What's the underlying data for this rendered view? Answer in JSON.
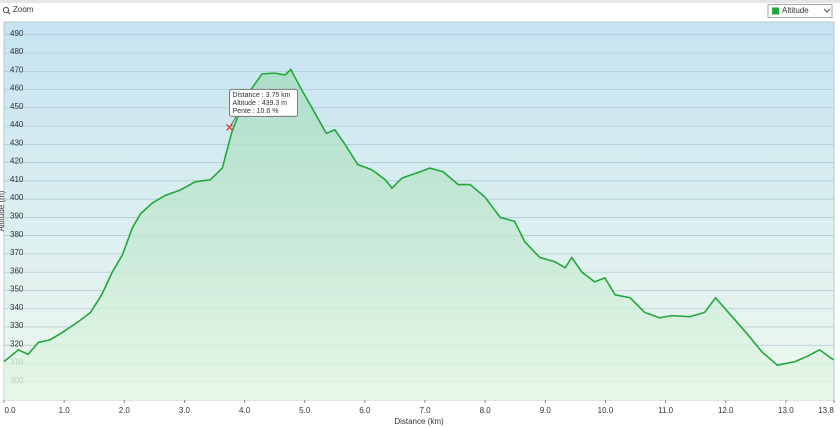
{
  "toolbar": {
    "zoom": "Zoom"
  },
  "chart_data": {
    "type": "line",
    "area": true,
    "grid": true,
    "x_label": "Distance (km)",
    "y_label": "Altitude (m)",
    "x": [
      0.0,
      0.24,
      0.4,
      0.57,
      0.77,
      0.97,
      1.24,
      1.44,
      1.63,
      1.8,
      1.97,
      2.13,
      2.27,
      2.47,
      2.68,
      2.93,
      3.18,
      3.43,
      3.63,
      3.79,
      4.01,
      4.29,
      4.5,
      4.67,
      4.77,
      4.93,
      5.12,
      5.36,
      5.5,
      5.67,
      5.88,
      6.12,
      6.34,
      6.45,
      6.62,
      6.92,
      7.08,
      7.3,
      7.55,
      7.75,
      8.0,
      8.25,
      8.49,
      8.66,
      8.91,
      9.16,
      9.33,
      9.44,
      9.61,
      9.82,
      9.99,
      10.16,
      10.41,
      10.65,
      10.9,
      11.1,
      11.4,
      11.65,
      11.83,
      12.07,
      12.37,
      12.6,
      12.86,
      13.15,
      13.36,
      13.56,
      13.79
    ],
    "series": [
      {
        "name": "Altitude",
        "color": "#22a83a",
        "values": [
          311,
          317.5,
          315,
          321.5,
          323,
          327,
          333,
          338,
          348,
          360,
          369.5,
          384,
          392,
          398,
          402,
          405,
          409.5,
          410.6,
          417,
          437,
          455.5,
          468.6,
          469,
          468,
          471,
          461,
          450,
          436,
          438,
          430,
          419,
          416,
          410.6,
          406,
          411.6,
          415,
          417,
          415,
          408,
          408,
          401,
          390,
          387.8,
          376.6,
          368,
          365.7,
          362.4,
          368,
          360,
          354.7,
          356.9,
          347.6,
          346,
          338,
          335,
          336.2,
          335.6,
          338,
          346,
          337,
          325.7,
          316.4,
          309,
          311,
          314,
          317.5,
          312
        ]
      }
    ],
    "xlim": [
      0,
      13.8
    ],
    "ylim": [
      290,
      497
    ],
    "xticks": [
      {
        "value": 0,
        "label": "0.0"
      },
      {
        "value": 1,
        "label": "1.0"
      },
      {
        "value": 2,
        "label": "2.0"
      },
      {
        "value": 3,
        "label": "3.0"
      },
      {
        "value": 4,
        "label": "4.0"
      },
      {
        "value": 5,
        "label": "5.0"
      },
      {
        "value": 6,
        "label": "6.0"
      },
      {
        "value": 7,
        "label": "7.0"
      },
      {
        "value": 8,
        "label": "8.0"
      },
      {
        "value": 9,
        "label": "9.0"
      },
      {
        "value": 10,
        "label": "10.0"
      },
      {
        "value": 11,
        "label": "11.0"
      },
      {
        "value": 12,
        "label": "12.0"
      },
      {
        "value": 13,
        "label": "13.0"
      },
      {
        "value": 13.8,
        "label": "13.8"
      }
    ],
    "yticks": [
      300,
      310,
      320,
      330,
      340,
      350,
      360,
      370,
      380,
      390,
      400,
      410,
      420,
      430,
      440,
      450,
      460,
      470,
      480,
      490
    ],
    "annotation": {
      "x": 3.75,
      "y": 439.3,
      "color": "#e04040",
      "lines": [
        "Distance : 3.75 km",
        "Altitude : 439.3 m",
        "Pente : 10.6 %"
      ]
    }
  }
}
